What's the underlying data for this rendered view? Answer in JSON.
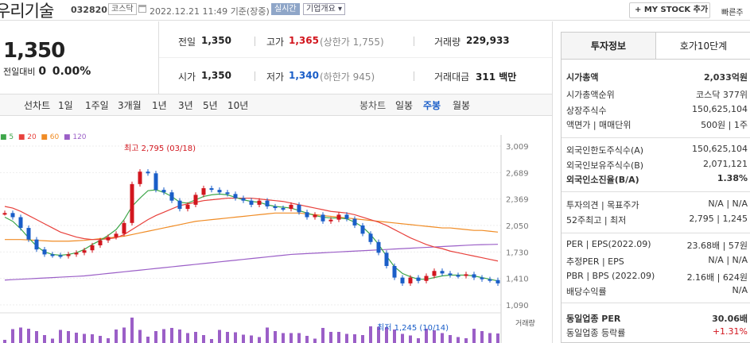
{
  "header": {
    "company": "우리기술",
    "code": "032820",
    "market": "코스닥",
    "datetime": "2022.12.21 11:49",
    "basis": "기준(장중)",
    "realtime": "실시간",
    "company_overview": "기업개요",
    "my_stock": "+ MY STOCK 추가",
    "quick": "빠른주"
  },
  "price": {
    "current": "1,350",
    "change_label": "전일대비",
    "change_value": "0",
    "change_pct": "0.00%"
  },
  "stats": {
    "prev_label": "전일",
    "prev": "1,350",
    "high_label": "고가",
    "high": "1,365",
    "upper_limit": "(상한가 1,755)",
    "volume_label": "거래량",
    "volume": "229,933",
    "open_label": "시가",
    "open": "1,350",
    "low_label": "저가",
    "low": "1,340",
    "lower_limit": "(하한가 945)",
    "amount_label": "거래대금",
    "amount": "311 백만"
  },
  "period_tabs": {
    "line_label": "선차트",
    "items": [
      "1일",
      "1주일",
      "3개월",
      "1년",
      "3년",
      "5년",
      "10년"
    ],
    "candle_label": "봉차트",
    "candle_items": [
      "일봉",
      "주봉",
      "월봉"
    ],
    "selected": "주봉"
  },
  "legend": [
    {
      "label": "5",
      "color": "#3ea64a"
    },
    {
      "label": "20",
      "color": "#e8413c"
    },
    {
      "label": "60",
      "color": "#f08c25"
    },
    {
      "label": "120",
      "color": "#9b5fc7"
    }
  ],
  "chart_data": {
    "type": "candlestick",
    "ylim": [
      1090,
      3009
    ],
    "yticks": [
      "3,009",
      "2,689",
      "2,369",
      "2,050",
      "1,730",
      "1,410",
      "1,090"
    ],
    "annotation_high": "최고 2,795 (03/18)",
    "annotation_low": "최저 1,245 (10/14)",
    "volume_label": "거래량",
    "closes": [
      2200,
      2150,
      2020,
      1880,
      1760,
      1700,
      1690,
      1680,
      1700,
      1720,
      1750,
      1810,
      1870,
      1910,
      1950,
      2080,
      2550,
      2700,
      2680,
      2480,
      2450,
      2350,
      2250,
      2300,
      2420,
      2500,
      2480,
      2450,
      2430,
      2380,
      2350,
      2300,
      2350,
      2280,
      2260,
      2250,
      2300,
      2210,
      2150,
      2180,
      2100,
      2120,
      2180,
      2130,
      2050,
      1950,
      1850,
      1720,
      1560,
      1420,
      1350,
      1420,
      1380,
      1440,
      1500,
      1470,
      1450,
      1440,
      1460,
      1420,
      1400,
      1390,
      1350
    ],
    "ma5": [
      2150,
      2100,
      2010,
      1900,
      1800,
      1730,
      1700,
      1690,
      1700,
      1720,
      1760,
      1820,
      1870,
      1930,
      2000,
      2120,
      2280,
      2380,
      2470,
      2480,
      2450,
      2400,
      2330,
      2320,
      2360,
      2400,
      2420,
      2430,
      2420,
      2390,
      2360,
      2340,
      2330,
      2300,
      2280,
      2270,
      2260,
      2230,
      2200,
      2170,
      2150,
      2140,
      2140,
      2130,
      2090,
      2030,
      1940,
      1820,
      1680,
      1550,
      1470,
      1430,
      1400,
      1400,
      1420,
      1440,
      1450,
      1450,
      1450,
      1440,
      1420,
      1400,
      1380
    ],
    "ma20": [
      2280,
      2260,
      2220,
      2170,
      2120,
      2070,
      2020,
      1970,
      1940,
      1910,
      1890,
      1880,
      1880,
      1890,
      1900,
      1940,
      2000,
      2060,
      2120,
      2170,
      2210,
      2250,
      2290,
      2310,
      2330,
      2350,
      2360,
      2370,
      2380,
      2380,
      2380,
      2380,
      2370,
      2360,
      2350,
      2340,
      2320,
      2300,
      2280,
      2260,
      2240,
      2220,
      2210,
      2200,
      2180,
      2150,
      2120,
      2090,
      2050,
      2000,
      1950,
      1900,
      1860,
      1820,
      1790,
      1770,
      1740,
      1720,
      1700,
      1680,
      1660,
      1640,
      1620
    ],
    "ma60": [
      1880,
      1880,
      1880,
      1875,
      1870,
      1865,
      1860,
      1860,
      1860,
      1865,
      1870,
      1880,
      1890,
      1900,
      1910,
      1920,
      1940,
      1960,
      1980,
      2000,
      2020,
      2040,
      2060,
      2080,
      2100,
      2110,
      2120,
      2130,
      2140,
      2150,
      2160,
      2170,
      2180,
      2190,
      2200,
      2200,
      2200,
      2200,
      2190,
      2180,
      2170,
      2160,
      2150,
      2140,
      2130,
      2120,
      2110,
      2100,
      2090,
      2080,
      2070,
      2060,
      2050,
      2040,
      2030,
      2020,
      2020,
      2010,
      2000,
      1990,
      1990,
      1980,
      1970
    ],
    "ma120": [
      1390,
      1395,
      1400,
      1405,
      1410,
      1415,
      1420,
      1425,
      1430,
      1435,
      1440,
      1450,
      1460,
      1470,
      1480,
      1490,
      1500,
      1510,
      1520,
      1530,
      1540,
      1550,
      1560,
      1570,
      1580,
      1590,
      1600,
      1610,
      1620,
      1630,
      1640,
      1650,
      1660,
      1670,
      1680,
      1690,
      1700,
      1705,
      1710,
      1715,
      1720,
      1725,
      1730,
      1735,
      1740,
      1745,
      1750,
      1755,
      1760,
      1765,
      1770,
      1775,
      1780,
      1785,
      1790,
      1795,
      1800,
      1805,
      1810,
      1815,
      1818,
      1820,
      1822
    ]
  },
  "invest": {
    "tab_info": "투자정보",
    "tab_hoga": "호가10단계",
    "rows": [
      {
        "label": "시가총액",
        "value": "2,033억원",
        "bold": true
      },
      {
        "label": "시가총액순위",
        "value": "코스닥 377위"
      },
      {
        "label": "상장주식수",
        "value": "150,625,104"
      },
      {
        "label": "액면가 | 매매단위",
        "value": "500원 | 1주"
      },
      {
        "label": "외국인한도주식수(A)",
        "value": "150,625,104"
      },
      {
        "label": "외국인보유주식수(B)",
        "value": "2,071,121"
      },
      {
        "label": "외국인소진율(B/A)",
        "value": "1.38%",
        "bold": true
      },
      {
        "label": "투자의견 | 목표주가",
        "value": "N/A | N/A"
      },
      {
        "label": "52주최고 | 최저",
        "value": "2,795 | 1,245"
      },
      {
        "label": "PER | EPS(2022.09)",
        "value": "23.68배 | 57원"
      },
      {
        "label": "추정PER | EPS",
        "value": "N/A | N/A"
      },
      {
        "label": "PBR | BPS (2022.09)",
        "value": "2.16배 | 624원"
      },
      {
        "label": "배당수익률",
        "value": "N/A"
      },
      {
        "label": "동일업종 PER",
        "value": "30.06배",
        "bold": true
      },
      {
        "label": "동일업종 등락률",
        "value": "+1.31%",
        "red": true
      }
    ]
  }
}
